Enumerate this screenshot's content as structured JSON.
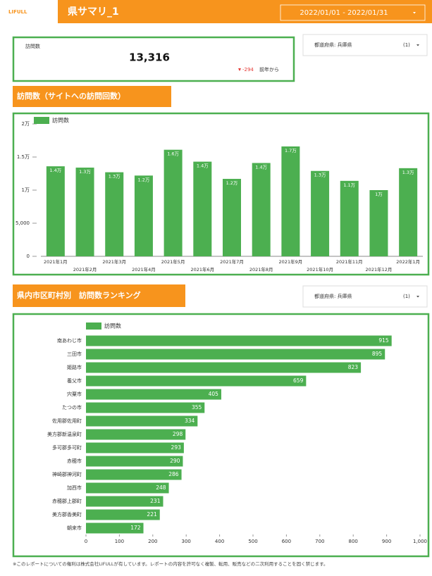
{
  "header": {
    "logo": "LIFULL",
    "title": "県サマリ_1",
    "date_range": "2022/01/01 - 2022/01/31"
  },
  "kpi": {
    "label": "訪問数",
    "value": "13,316",
    "delta": "-294",
    "delta_note": "前年から"
  },
  "filters": [
    {
      "label": "都道府県: 兵庫県",
      "count": "(1)"
    },
    {
      "label": "都道府県: 兵庫県",
      "count": "(1)"
    }
  ],
  "sections": [
    "訪問数（サイトへの訪問回数）",
    "県内市区町村別　訪問数ランキング"
  ],
  "chart_data": [
    {
      "type": "bar",
      "categories": [
        "2021年1月",
        "2021年2月",
        "2021年3月",
        "2021年4月",
        "2021年5月",
        "2021年6月",
        "2021年7月",
        "2021年8月",
        "2021年9月",
        "2021年10月",
        "2021年11月",
        "2021年12月",
        "2022年1月"
      ],
      "series": [
        {
          "name": "訪問数",
          "color": "#4caf50",
          "values": [
            13600,
            13400,
            12700,
            12200,
            16100,
            14300,
            11700,
            14100,
            16600,
            12900,
            11400,
            10000,
            13316
          ],
          "value_labels": [
            "1.4万",
            "1.3万",
            "1.3万",
            "1.2万",
            "1.6万",
            "1.4万",
            "1.2万",
            "1.4万",
            "1.7万",
            "1.3万",
            "1.1万",
            "1万",
            "1.3万"
          ]
        }
      ],
      "ylim": [
        0,
        20000
      ],
      "yticks": [
        0,
        {
          "value": 5000,
          "label": "5,000"
        },
        {
          "value": 10000,
          "label": "1万"
        },
        {
          "value": 15000,
          "label": "1.5万"
        },
        {
          "value": 20000,
          "label": "2万"
        }
      ],
      "grid": false
    },
    {
      "type": "hbar",
      "categories": [
        "南あわじ市",
        "三田市",
        "姫路市",
        "養父市",
        "宍粟市",
        "たつの市",
        "佐用郡佐用町",
        "美方郡新温泉町",
        "多可郡多可町",
        "赤穂市",
        "神崎郡神河町",
        "加西市",
        "赤穂郡上郡町",
        "美方郡香美町",
        "朝来市"
      ],
      "series": [
        {
          "name": "訪問数",
          "color": "#4caf50",
          "values": [
            915,
            895,
            823,
            659,
            405,
            355,
            334,
            298,
            293,
            290,
            286,
            248,
            231,
            221,
            172
          ]
        }
      ],
      "xlim": [
        0,
        1000
      ],
      "xticks": [
        0,
        100,
        200,
        300,
        400,
        500,
        600,
        700,
        800,
        900,
        {
          "value": 1000,
          "label": "1,000"
        }
      ],
      "grid": false
    }
  ],
  "footer": "※このレポートについての権利は株式会社LIFULLが有しています。レポートの内容を許可なく複製、転用、販売などの二次利用することを固く禁じます。"
}
